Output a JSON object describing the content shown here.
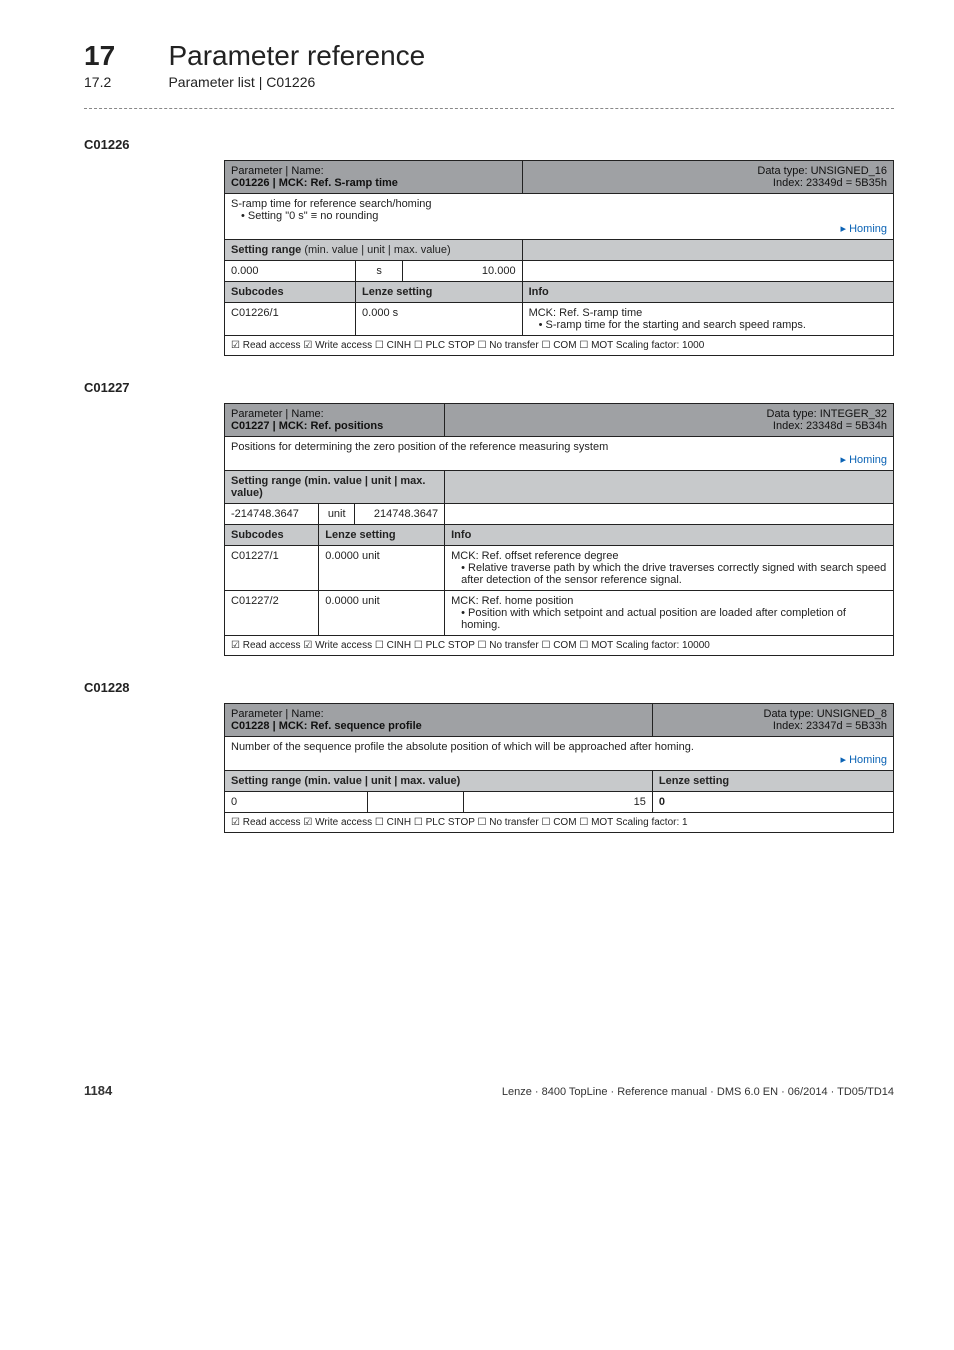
{
  "header": {
    "chapter_num": "17",
    "chapter_title": "Parameter reference",
    "sub_num": "17.2",
    "sub_title": "Parameter list | C01226"
  },
  "sections": [
    {
      "code": "C01226",
      "title_param_label": "Parameter | Name:",
      "title_param_value": "C01226 | MCK: Ref. S-ramp time",
      "title_right_line1": "Data type: UNSIGNED_16",
      "title_right_line2": "Index: 23349d = 5B35h",
      "desc_lines": [
        "S-ramp time for reference search/homing",
        "• Setting \"0 s\" ≡ no rounding"
      ],
      "homing_link": "Homing",
      "setting_range_label": "Setting range (min. value | unit | max. value)",
      "setting_range": {
        "min": "0.000",
        "unit": "s",
        "max": "10.000"
      },
      "subcodes_label": "Subcodes",
      "lenze_label": "Lenze setting",
      "info_label": "Info",
      "rows": [
        {
          "sub": "C01226/1",
          "lenze": "0.000 s",
          "info_lines": [
            "MCK: Ref. S-ramp time",
            "• S-ramp time for the starting and search speed ramps."
          ]
        }
      ],
      "access_line": "☑ Read access  ☑ Write access  ☐ CINH  ☐ PLC STOP  ☐ No transfer  ☐ COM  ☐ MOT   Scaling factor: 1000"
    },
    {
      "code": "C01227",
      "title_param_label": "Parameter | Name:",
      "title_param_value": "C01227 | MCK: Ref. positions",
      "title_right_line1": "Data type: INTEGER_32",
      "title_right_line2": "Index: 23348d = 5B34h",
      "desc_lines": [
        "Positions for determining the zero position of the reference measuring system"
      ],
      "homing_link": "Homing",
      "setting_range_label": "Setting range (min. value | unit | max. value)",
      "setting_range": {
        "min": "-214748.3647",
        "unit": "unit",
        "max": "214748.3647"
      },
      "subcodes_label": "Subcodes",
      "lenze_label": "Lenze setting",
      "info_label": "Info",
      "rows": [
        {
          "sub": "C01227/1",
          "lenze": "0.0000 unit",
          "info_lines": [
            "MCK: Ref. offset reference degree",
            "• Relative traverse path by which the drive traverses correctly signed with search speed after detection of the sensor reference signal."
          ]
        },
        {
          "sub": "C01227/2",
          "lenze": "0.0000 unit",
          "info_lines": [
            "MCK: Ref. home position",
            "• Position with which setpoint and actual position are loaded after completion of homing."
          ]
        }
      ],
      "access_line": "☑ Read access  ☑ Write access  ☐ CINH  ☐ PLC STOP  ☐ No transfer  ☐ COM  ☐ MOT   Scaling factor: 10000"
    },
    {
      "code": "C01228",
      "title_param_label": "Parameter | Name:",
      "title_param_value": "C01228 | MCK: Ref. sequence profile",
      "title_right_line1": "Data type: UNSIGNED_8",
      "title_right_line2": "Index: 23347d = 5B33h",
      "desc_lines": [
        "Number of the sequence profile the absolute position of which will be approached after homing."
      ],
      "homing_link": "Homing",
      "setting_range_label": "Setting range (min. value | unit | max. value)",
      "lenze_label": "Lenze setting",
      "simple_row": {
        "min": "0",
        "max": "15",
        "lenze": "0"
      },
      "access_line": "☑ Read access  ☑ Write access  ☐ CINH  ☐ PLC STOP  ☐ No transfer  ☐ COM  ☐ MOT   Scaling factor: 1"
    }
  ],
  "footer": {
    "page": "1184",
    "right": "Lenze · 8400 TopLine · Reference manual · DMS 6.0 EN · 06/2014 · TD05/TD14"
  }
}
